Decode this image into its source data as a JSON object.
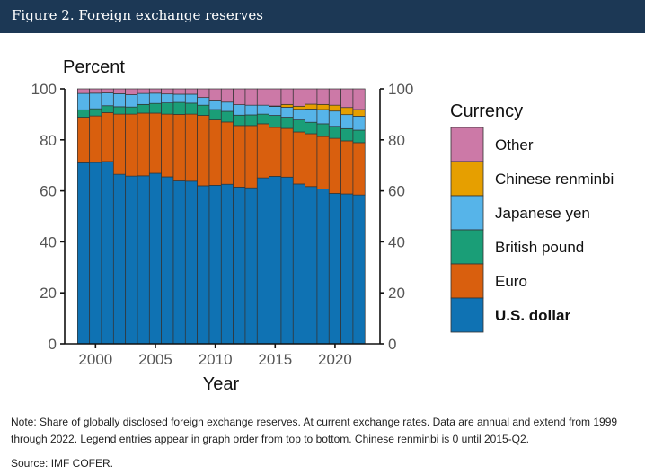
{
  "header": {
    "title": "Figure 2. Foreign exchange reserves"
  },
  "note": "Note: Share of globally disclosed foreign exchange reserves. At current exchange rates. Data are annual and extend from 1999 through 2022. Legend entries appear in graph order from top to bottom. Chinese renminbi is 0 until 2015-Q2.",
  "source": "Source: IMF COFER.",
  "chart_data": {
    "type": "bar",
    "stacked": true,
    "title": "Figure 2. Foreign exchange reserves",
    "ylabel": "Percent",
    "xlabel": "Year",
    "ylim": [
      0,
      100
    ],
    "yticks": [
      0,
      20,
      40,
      60,
      80,
      100
    ],
    "xticks": [
      2000,
      2005,
      2010,
      2015,
      2020
    ],
    "secondary_y_axis": true,
    "legend_title": "Currency",
    "legend_position": "right",
    "categories": [
      1999,
      2000,
      2001,
      2002,
      2003,
      2004,
      2005,
      2006,
      2007,
      2008,
      2009,
      2010,
      2011,
      2012,
      2013,
      2014,
      2015,
      2016,
      2017,
      2018,
      2019,
      2020,
      2021,
      2022
    ],
    "series": [
      {
        "name": "U.S. dollar",
        "color": "#0f72b3",
        "bold": true,
        "values": [
          71.0,
          71.1,
          71.5,
          66.5,
          65.8,
          65.9,
          66.9,
          65.5,
          63.9,
          63.8,
          62.0,
          62.2,
          62.6,
          61.5,
          61.2,
          65.1,
          65.7,
          65.4,
          62.7,
          61.7,
          60.7,
          59.0,
          58.8,
          58.4
        ]
      },
      {
        "name": "Euro",
        "color": "#d95f0e",
        "values": [
          17.9,
          18.3,
          19.2,
          23.6,
          24.3,
          24.6,
          23.6,
          24.6,
          26.1,
          26.3,
          27.6,
          25.6,
          24.4,
          24.1,
          24.4,
          21.2,
          19.2,
          19.1,
          20.4,
          20.7,
          20.6,
          21.6,
          20.8,
          20.5
        ]
      },
      {
        "name": "British pound",
        "color": "#1a9e77",
        "values": [
          2.9,
          2.8,
          2.7,
          2.9,
          2.8,
          3.4,
          3.8,
          4.4,
          4.7,
          4.3,
          4.0,
          4.1,
          4.2,
          4.1,
          4.2,
          3.8,
          4.7,
          4.4,
          4.7,
          4.5,
          5.0,
          4.7,
          4.8,
          4.9
        ]
      },
      {
        "name": "Japanese yen",
        "color": "#56b4e9",
        "values": [
          6.4,
          6.1,
          5.0,
          5.1,
          4.8,
          4.3,
          4.0,
          3.5,
          3.2,
          3.5,
          3.0,
          3.7,
          3.6,
          4.1,
          3.8,
          3.5,
          3.5,
          3.9,
          4.2,
          5.2,
          5.6,
          6.0,
          5.5,
          5.5
        ]
      },
      {
        "name": "Chinese renminbi",
        "color": "#e69f00",
        "values": [
          0,
          0,
          0,
          0,
          0,
          0,
          0,
          0,
          0,
          0,
          0,
          0,
          0,
          0,
          0,
          0,
          0.2,
          1.1,
          1.2,
          1.9,
          2.0,
          2.3,
          2.8,
          2.6
        ]
      },
      {
        "name": "Other",
        "color": "#cc79a7",
        "values": [
          1.8,
          1.7,
          1.6,
          1.9,
          2.3,
          1.8,
          1.7,
          2.0,
          2.1,
          2.1,
          3.4,
          4.4,
          5.2,
          6.2,
          6.4,
          6.4,
          6.7,
          6.1,
          6.8,
          6.0,
          6.1,
          6.4,
          7.3,
          8.1
        ]
      }
    ],
    "legend_order": [
      "Other",
      "Chinese renminbi",
      "Japanese yen",
      "British pound",
      "Euro",
      "U.S. dollar"
    ]
  }
}
